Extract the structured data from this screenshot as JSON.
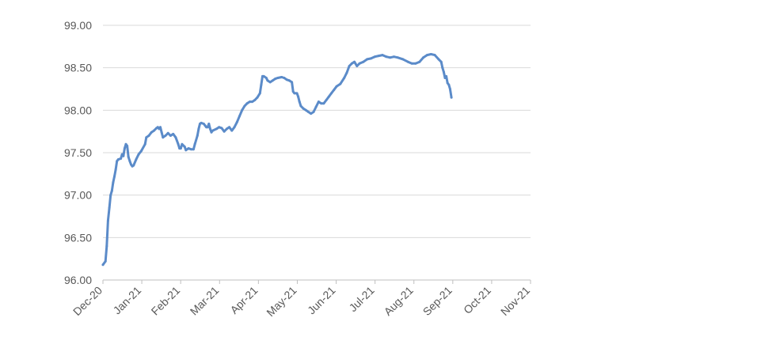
{
  "chart_data": {
    "type": "line",
    "title": "",
    "xlabel": "",
    "ylabel": "",
    "ylim": [
      96.0,
      99.0
    ],
    "yticks": [
      "96.00",
      "96.50",
      "97.00",
      "97.50",
      "98.00",
      "98.50",
      "99.00"
    ],
    "xticks": [
      "Dec-20",
      "Jan-21",
      "Feb-21",
      "Mar-21",
      "Apr-21",
      "May-21",
      "Jun-21",
      "Jul-21",
      "Aug-21",
      "Sep-21",
      "Oct-21",
      "Nov-21"
    ],
    "xlim": [
      "2020-12-01",
      "2021-11-01"
    ],
    "grid": true,
    "colors": {
      "line": "#5B8BC9",
      "grid": "#D9D9D9",
      "axis": "#BFBFBF",
      "text": "#595959"
    },
    "series": [
      {
        "points": [
          [
            "2020-12-01",
            96.18
          ],
          [
            "2020-12-03",
            96.22
          ],
          [
            "2020-12-04",
            96.4
          ],
          [
            "2020-12-05",
            96.7
          ],
          [
            "2020-12-06",
            96.85
          ],
          [
            "2020-12-07",
            97.0
          ],
          [
            "2020-12-08",
            97.05
          ],
          [
            "2020-12-09",
            97.15
          ],
          [
            "2020-12-10",
            97.22
          ],
          [
            "2020-12-11",
            97.3
          ],
          [
            "2020-12-12",
            97.4
          ],
          [
            "2020-12-13",
            97.42
          ],
          [
            "2020-12-15",
            97.43
          ],
          [
            "2020-12-16",
            97.48
          ],
          [
            "2020-12-17",
            97.46
          ],
          [
            "2020-12-18",
            97.55
          ],
          [
            "2020-12-19",
            97.6
          ],
          [
            "2020-12-20",
            97.58
          ],
          [
            "2020-12-21",
            97.45
          ],
          [
            "2020-12-22",
            97.4
          ],
          [
            "2020-12-23",
            97.36
          ],
          [
            "2020-12-24",
            97.34
          ],
          [
            "2020-12-25",
            97.35
          ],
          [
            "2020-12-27",
            97.42
          ],
          [
            "2020-12-29",
            97.48
          ],
          [
            "2020-12-31",
            97.52
          ],
          [
            "2021-01-03",
            97.6
          ],
          [
            "2021-01-04",
            97.68
          ],
          [
            "2021-01-06",
            97.7
          ],
          [
            "2021-01-08",
            97.74
          ],
          [
            "2021-01-10",
            97.76
          ],
          [
            "2021-01-12",
            97.79
          ],
          [
            "2021-01-13",
            97.8
          ],
          [
            "2021-01-14",
            97.78
          ],
          [
            "2021-01-15",
            97.8
          ],
          [
            "2021-01-16",
            97.74
          ],
          [
            "2021-01-17",
            97.68
          ],
          [
            "2021-01-19",
            97.7
          ],
          [
            "2021-01-21",
            97.73
          ],
          [
            "2021-01-23",
            97.7
          ],
          [
            "2021-01-25",
            97.72
          ],
          [
            "2021-01-27",
            97.68
          ],
          [
            "2021-01-29",
            97.6
          ],
          [
            "2021-01-30",
            97.55
          ],
          [
            "2021-01-31",
            97.55
          ],
          [
            "2021-02-01",
            97.6
          ],
          [
            "2021-02-03",
            97.57
          ],
          [
            "2021-02-04",
            97.53
          ],
          [
            "2021-02-06",
            97.55
          ],
          [
            "2021-02-08",
            97.54
          ],
          [
            "2021-02-10",
            97.54
          ],
          [
            "2021-02-11",
            97.6
          ],
          [
            "2021-02-13",
            97.7
          ],
          [
            "2021-02-14",
            97.78
          ],
          [
            "2021-02-15",
            97.84
          ],
          [
            "2021-02-16",
            97.85
          ],
          [
            "2021-02-18",
            97.84
          ],
          [
            "2021-02-19",
            97.82
          ],
          [
            "2021-02-20",
            97.8
          ],
          [
            "2021-02-21",
            97.8
          ],
          [
            "2021-02-22",
            97.84
          ],
          [
            "2021-02-23",
            97.78
          ],
          [
            "2021-02-24",
            97.74
          ],
          [
            "2021-02-25",
            97.76
          ],
          [
            "2021-02-28",
            97.78
          ],
          [
            "2021-03-02",
            97.8
          ],
          [
            "2021-03-04",
            97.79
          ],
          [
            "2021-03-06",
            97.75
          ],
          [
            "2021-03-08",
            97.78
          ],
          [
            "2021-03-10",
            97.8
          ],
          [
            "2021-03-12",
            97.76
          ],
          [
            "2021-03-14",
            97.8
          ],
          [
            "2021-03-16",
            97.86
          ],
          [
            "2021-03-18",
            97.93
          ],
          [
            "2021-03-20",
            98.0
          ],
          [
            "2021-03-22",
            98.05
          ],
          [
            "2021-03-24",
            98.08
          ],
          [
            "2021-03-26",
            98.1
          ],
          [
            "2021-03-28",
            98.1
          ],
          [
            "2021-03-30",
            98.12
          ],
          [
            "2021-04-01",
            98.15
          ],
          [
            "2021-04-03",
            98.2
          ],
          [
            "2021-04-04",
            98.3
          ],
          [
            "2021-04-05",
            98.4
          ],
          [
            "2021-04-06",
            98.4
          ],
          [
            "2021-04-08",
            98.38
          ],
          [
            "2021-04-09",
            98.35
          ],
          [
            "2021-04-11",
            98.33
          ],
          [
            "2021-04-13",
            98.35
          ],
          [
            "2021-04-15",
            98.37
          ],
          [
            "2021-04-17",
            98.38
          ],
          [
            "2021-04-20",
            98.39
          ],
          [
            "2021-04-22",
            98.38
          ],
          [
            "2021-04-24",
            98.36
          ],
          [
            "2021-04-26",
            98.35
          ],
          [
            "2021-04-28",
            98.33
          ],
          [
            "2021-04-29",
            98.22
          ],
          [
            "2021-04-30",
            98.2
          ],
          [
            "2021-05-02",
            98.2
          ],
          [
            "2021-05-03",
            98.16
          ],
          [
            "2021-05-04",
            98.1
          ],
          [
            "2021-05-05",
            98.05
          ],
          [
            "2021-05-07",
            98.02
          ],
          [
            "2021-05-09",
            98.0
          ],
          [
            "2021-05-11",
            97.98
          ],
          [
            "2021-05-13",
            97.96
          ],
          [
            "2021-05-15",
            97.98
          ],
          [
            "2021-05-17",
            98.04
          ],
          [
            "2021-05-19",
            98.1
          ],
          [
            "2021-05-21",
            98.08
          ],
          [
            "2021-05-23",
            98.08
          ],
          [
            "2021-05-25",
            98.12
          ],
          [
            "2021-05-27",
            98.16
          ],
          [
            "2021-05-29",
            98.2
          ],
          [
            "2021-05-31",
            98.24
          ],
          [
            "2021-06-02",
            98.28
          ],
          [
            "2021-06-05",
            98.31
          ],
          [
            "2021-06-08",
            98.38
          ],
          [
            "2021-06-10",
            98.44
          ],
          [
            "2021-06-12",
            98.52
          ],
          [
            "2021-06-14",
            98.55
          ],
          [
            "2021-06-16",
            98.57
          ],
          [
            "2021-06-18",
            98.52
          ],
          [
            "2021-06-20",
            98.55
          ],
          [
            "2021-06-23",
            98.57
          ],
          [
            "2021-06-26",
            98.6
          ],
          [
            "2021-06-29",
            98.61
          ],
          [
            "2021-07-02",
            98.63
          ],
          [
            "2021-07-05",
            98.64
          ],
          [
            "2021-07-08",
            98.65
          ],
          [
            "2021-07-11",
            98.63
          ],
          [
            "2021-07-14",
            98.62
          ],
          [
            "2021-07-17",
            98.63
          ],
          [
            "2021-07-20",
            98.62
          ],
          [
            "2021-07-24",
            98.6
          ],
          [
            "2021-07-28",
            98.57
          ],
          [
            "2021-07-31",
            98.55
          ],
          [
            "2021-08-03",
            98.55
          ],
          [
            "2021-08-06",
            98.57
          ],
          [
            "2021-08-09",
            98.62
          ],
          [
            "2021-08-12",
            98.65
          ],
          [
            "2021-08-15",
            98.66
          ],
          [
            "2021-08-18",
            98.65
          ],
          [
            "2021-08-21",
            98.6
          ],
          [
            "2021-08-23",
            98.57
          ],
          [
            "2021-08-24",
            98.5
          ],
          [
            "2021-08-25",
            98.45
          ],
          [
            "2021-08-26",
            98.38
          ],
          [
            "2021-08-27",
            98.4
          ],
          [
            "2021-08-28",
            98.32
          ],
          [
            "2021-08-29",
            98.3
          ],
          [
            "2021-08-30",
            98.25
          ],
          [
            "2021-08-31",
            98.15
          ]
        ]
      }
    ]
  }
}
